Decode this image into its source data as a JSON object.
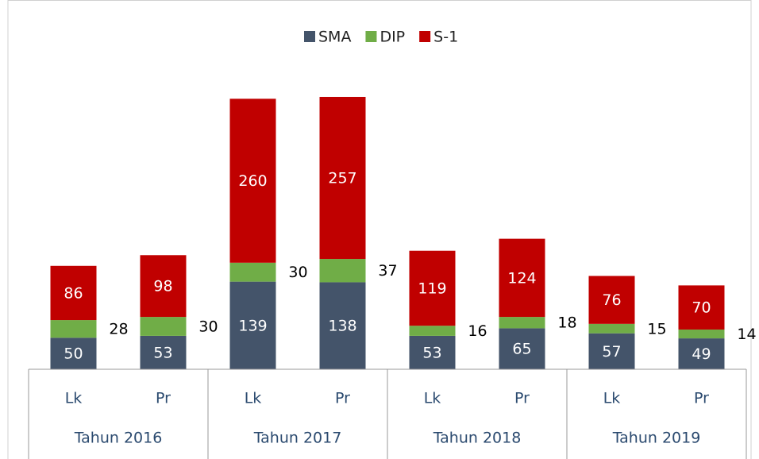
{
  "chart_data": {
    "type": "stacked_bar",
    "groups": [
      "Tahun 2016",
      "Tahun 2017",
      "Tahun 2018",
      "Tahun 2019"
    ],
    "categories": [
      "Lk",
      "Pr",
      "Lk",
      "Pr",
      "Lk",
      "Pr",
      "Lk",
      "Pr"
    ],
    "series": [
      {
        "name": "SMA",
        "color": "#44546a",
        "values": [
          50,
          53,
          139,
          138,
          53,
          65,
          57,
          49
        ]
      },
      {
        "name": "DIP",
        "color": "#70ad47",
        "values": [
          28,
          30,
          30,
          37,
          16,
          18,
          15,
          14
        ]
      },
      {
        "name": "S-1",
        "color": "#c00000",
        "values": [
          86,
          98,
          260,
          257,
          119,
          124,
          76,
          70
        ]
      }
    ],
    "legend": "top"
  }
}
